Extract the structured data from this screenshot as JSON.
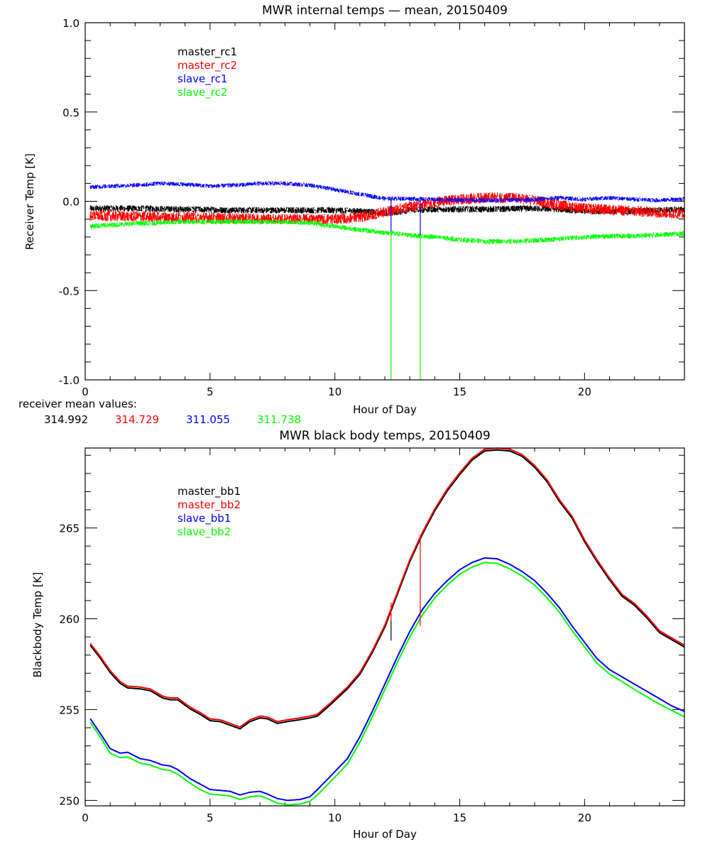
{
  "chart_data": [
    {
      "type": "line",
      "title": "MWR internal temps — mean, 20150409",
      "xlabel": "Hour of Day",
      "ylabel": "Receiver Temp [K]",
      "xlim": [
        0,
        24
      ],
      "ylim": [
        -1.0,
        1.0
      ],
      "xticks": [
        0,
        5,
        10,
        15,
        20
      ],
      "xtick_labels": [
        "0",
        "5",
        "10",
        "15",
        "20"
      ],
      "xminor_step": 1,
      "yticks": [
        -1.0,
        -0.5,
        0.0,
        0.5,
        1.0
      ],
      "ytick_labels": [
        "-1.0",
        "-0.5",
        "0.0",
        "0.5",
        "1.0"
      ],
      "yminor_step": 0.1,
      "grid": false,
      "legend_position": "top-left",
      "noisy": true,
      "series": [
        {
          "name": "master_rc1",
          "color": "#000000",
          "noise": 0.018,
          "x": [
            0.2,
            2,
            4,
            6,
            8,
            10,
            11,
            12,
            12.5,
            13,
            14,
            16,
            18,
            19,
            20,
            22,
            24
          ],
          "y": [
            -0.04,
            -0.04,
            -0.045,
            -0.05,
            -0.05,
            -0.05,
            -0.055,
            -0.065,
            -0.06,
            -0.05,
            -0.045,
            -0.045,
            -0.04,
            -0.045,
            -0.055,
            -0.055,
            -0.045
          ]
        },
        {
          "name": "master_rc2",
          "color": "#ff0000",
          "noise": 0.03,
          "x": [
            0.2,
            2,
            4,
            6,
            8,
            10,
            11,
            12,
            13,
            14,
            15,
            16,
            17,
            18,
            19,
            20,
            22,
            24
          ],
          "y": [
            -0.08,
            -0.085,
            -0.09,
            -0.095,
            -0.1,
            -0.1,
            -0.09,
            -0.06,
            -0.03,
            -0.005,
            0.01,
            0.02,
            0.02,
            0.005,
            -0.02,
            -0.04,
            -0.055,
            -0.07
          ]
        },
        {
          "name": "slave_rc1",
          "color": "#0000ff",
          "noise": 0.012,
          "x": [
            0.2,
            1,
            2,
            3,
            4,
            5,
            6,
            7,
            8,
            9,
            10,
            11,
            12,
            13,
            14,
            16,
            18,
            19,
            20,
            21,
            22,
            23,
            24
          ],
          "y": [
            0.08,
            0.085,
            0.09,
            0.1,
            0.095,
            0.085,
            0.09,
            0.1,
            0.1,
            0.09,
            0.065,
            0.04,
            0.015,
            0.015,
            0.01,
            0.005,
            0.01,
            0.02,
            0.01,
            0.02,
            0.01,
            0.005,
            0.015
          ]
        },
        {
          "name": "slave_rc2",
          "color": "#00ff00",
          "noise": 0.014,
          "x": [
            0.2,
            2,
            4,
            6,
            8,
            9,
            10,
            11,
            12,
            13,
            14,
            15,
            16,
            17,
            18,
            19,
            20,
            21,
            22,
            24
          ],
          "y": [
            -0.14,
            -0.125,
            -0.115,
            -0.115,
            -0.115,
            -0.12,
            -0.14,
            -0.16,
            -0.175,
            -0.19,
            -0.2,
            -0.215,
            -0.225,
            -0.225,
            -0.22,
            -0.21,
            -0.2,
            -0.195,
            -0.195,
            -0.18
          ]
        }
      ],
      "spikes": [
        {
          "series": "slave_rc2",
          "x": 12.25,
          "y_from": -0.17,
          "y_to": -1.0
        },
        {
          "series": "slave_rc2",
          "x": 13.42,
          "y_from": -0.19,
          "y_to": -1.0
        },
        {
          "series": "slave_rc1",
          "x": 12.25,
          "y_from": 0.015,
          "y_to": -0.17
        },
        {
          "series": "slave_rc1",
          "x": 13.42,
          "y_from": 0.015,
          "y_to": -0.19
        }
      ]
    },
    {
      "type": "line",
      "title": "MWR black body temps, 20150409",
      "xlabel": "Hour of Day",
      "ylabel": "Blackbody Temp [K]",
      "xlim": [
        0,
        24
      ],
      "ylim": [
        249.7,
        269.4
      ],
      "xticks": [
        0,
        5,
        10,
        15,
        20
      ],
      "xtick_labels": [
        "0",
        "5",
        "10",
        "15",
        "20"
      ],
      "xminor_step": 1,
      "yticks": [
        250,
        255,
        260,
        265
      ],
      "ytick_labels": [
        "250",
        "255",
        "260",
        "265"
      ],
      "yminor_step": 1,
      "grid": false,
      "legend_position": "top-left",
      "noisy": false,
      "series": [
        {
          "name": "master_bb1",
          "color": "#000000",
          "offset": -0.06,
          "x": [
            0.2,
            0.6,
            1.0,
            1.4,
            1.7,
            2.2,
            2.6,
            3.1,
            3.4,
            3.7,
            4.2,
            4.6,
            5.0,
            5.4,
            5.8,
            6.2,
            6.6,
            7.0,
            7.3,
            7.7,
            8.1,
            8.6,
            9.0,
            9.3,
            9.8,
            10.5,
            11.0,
            11.5,
            12.0,
            12.5,
            13.0,
            13.5,
            14.0,
            14.5,
            15.0,
            15.5,
            16.0,
            16.5,
            17.0,
            17.5,
            18.0,
            18.5,
            19.0,
            19.5,
            20.0,
            20.5,
            21.0,
            21.5,
            22.0,
            22.5,
            23.0,
            23.5,
            24.0
          ],
          "y": [
            258.6,
            257.9,
            257.1,
            256.5,
            256.25,
            256.2,
            256.1,
            255.7,
            255.6,
            255.6,
            255.1,
            254.8,
            254.45,
            254.4,
            254.2,
            254.0,
            254.4,
            254.6,
            254.55,
            254.3,
            254.4,
            254.5,
            254.6,
            254.7,
            255.3,
            256.2,
            257.0,
            258.2,
            259.6,
            261.4,
            263.2,
            264.7,
            266.0,
            267.1,
            268.0,
            268.8,
            269.3,
            269.35,
            269.3,
            269.0,
            268.4,
            267.6,
            266.5,
            265.6,
            264.3,
            263.2,
            262.2,
            261.3,
            260.8,
            260.1,
            259.3,
            258.9,
            258.5
          ]
        },
        {
          "name": "master_bb2",
          "color": "#ff0000",
          "offset": 0.04,
          "x": [
            0.2,
            0.6,
            1.0,
            1.4,
            1.7,
            2.2,
            2.6,
            3.1,
            3.4,
            3.7,
            4.2,
            4.6,
            5.0,
            5.4,
            5.8,
            6.2,
            6.6,
            7.0,
            7.3,
            7.7,
            8.1,
            8.6,
            9.0,
            9.3,
            9.8,
            10.5,
            11.0,
            11.5,
            12.0,
            12.5,
            13.0,
            13.5,
            14.0,
            14.5,
            15.0,
            15.5,
            16.0,
            16.5,
            17.0,
            17.5,
            18.0,
            18.5,
            19.0,
            19.5,
            20.0,
            20.5,
            21.0,
            21.5,
            22.0,
            22.5,
            23.0,
            23.5,
            24.0
          ],
          "y": [
            258.6,
            257.9,
            257.1,
            256.5,
            256.25,
            256.2,
            256.1,
            255.7,
            255.6,
            255.6,
            255.1,
            254.8,
            254.45,
            254.4,
            254.2,
            254.0,
            254.4,
            254.6,
            254.55,
            254.3,
            254.4,
            254.5,
            254.6,
            254.7,
            255.3,
            256.2,
            257.0,
            258.2,
            259.6,
            261.4,
            263.2,
            264.7,
            266.0,
            267.1,
            268.0,
            268.8,
            269.3,
            269.35,
            269.3,
            269.0,
            268.4,
            267.6,
            266.5,
            265.6,
            264.3,
            263.2,
            262.2,
            261.3,
            260.8,
            260.1,
            259.3,
            258.9,
            258.5
          ]
        },
        {
          "name": "slave_bb1",
          "color": "#0000ff",
          "offset": 0,
          "x": [
            0.2,
            0.6,
            1.0,
            1.4,
            1.7,
            2.2,
            2.6,
            3.1,
            3.4,
            3.7,
            4.2,
            4.6,
            5.0,
            5.4,
            5.8,
            6.2,
            6.6,
            7.0,
            7.3,
            7.7,
            8.1,
            8.6,
            9.0,
            9.3,
            9.8,
            10.5,
            11.0,
            11.5,
            12.0,
            12.5,
            13.0,
            13.5,
            14.0,
            14.5,
            15.0,
            15.5,
            16.0,
            16.5,
            17.0,
            17.5,
            18.0,
            18.5,
            19.0,
            19.5,
            20.0,
            20.5,
            21.0,
            21.5,
            22.0,
            22.5,
            23.0,
            23.5,
            24.0
          ],
          "y": [
            254.5,
            253.7,
            252.85,
            252.6,
            252.65,
            252.3,
            252.2,
            251.95,
            251.9,
            251.7,
            251.2,
            250.9,
            250.6,
            250.55,
            250.5,
            250.3,
            250.45,
            250.5,
            250.35,
            250.1,
            250.0,
            250.05,
            250.2,
            250.6,
            251.3,
            252.3,
            253.5,
            254.9,
            256.4,
            257.9,
            259.3,
            260.5,
            261.4,
            262.1,
            262.7,
            263.1,
            263.35,
            263.3,
            263.0,
            262.6,
            262.1,
            261.4,
            260.6,
            259.6,
            258.7,
            257.8,
            257.2,
            256.8,
            256.4,
            256.0,
            255.6,
            255.2,
            254.9
          ]
        },
        {
          "name": "slave_bb2",
          "color": "#00ff00",
          "offset": 0,
          "x": [
            0.2,
            0.6,
            1.0,
            1.4,
            1.7,
            2.2,
            2.6,
            3.1,
            3.4,
            3.7,
            4.2,
            4.6,
            5.0,
            5.4,
            5.8,
            6.2,
            6.6,
            7.0,
            7.3,
            7.7,
            8.1,
            8.6,
            9.0,
            9.3,
            9.8,
            10.5,
            11.0,
            11.5,
            12.0,
            12.5,
            13.0,
            13.5,
            14.0,
            14.5,
            15.0,
            15.5,
            16.0,
            16.5,
            17.0,
            17.5,
            18.0,
            18.5,
            19.0,
            19.5,
            20.0,
            20.5,
            21.0,
            21.5,
            22.0,
            22.5,
            23.0,
            23.5,
            24.0
          ],
          "y": [
            254.3,
            253.5,
            252.6,
            252.35,
            252.4,
            252.05,
            251.95,
            251.7,
            251.65,
            251.45,
            250.95,
            250.6,
            250.35,
            250.3,
            250.25,
            250.05,
            250.2,
            250.25,
            250.1,
            249.85,
            249.75,
            249.8,
            249.95,
            250.3,
            251.0,
            252.0,
            253.2,
            254.6,
            256.1,
            257.6,
            259.0,
            260.2,
            261.15,
            261.85,
            262.45,
            262.85,
            263.1,
            263.05,
            262.75,
            262.35,
            261.85,
            261.15,
            260.35,
            259.35,
            258.45,
            257.55,
            256.95,
            256.55,
            256.1,
            255.7,
            255.3,
            254.95,
            254.6
          ]
        }
      ],
      "spikes": [
        {
          "series": "master_bb1",
          "x": 12.25,
          "y_from": 259.9,
          "y_to": 258.8
        },
        {
          "series": "master_bb2",
          "x": 12.25,
          "y_from": 260.9,
          "y_to": 259.9
        },
        {
          "series": "master_bb2",
          "x": 13.42,
          "y_from": 264.6,
          "y_to": 259.6
        }
      ]
    }
  ],
  "annotations": {
    "receiver_mean_label": "receiver mean values:",
    "receiver_means": [
      {
        "value": "314.992",
        "color": "#000000"
      },
      {
        "value": "314.729",
        "color": "#ff0000"
      },
      {
        "value": "311.055",
        "color": "#0000ff"
      },
      {
        "value": "311.738",
        "color": "#00ff00"
      }
    ]
  }
}
